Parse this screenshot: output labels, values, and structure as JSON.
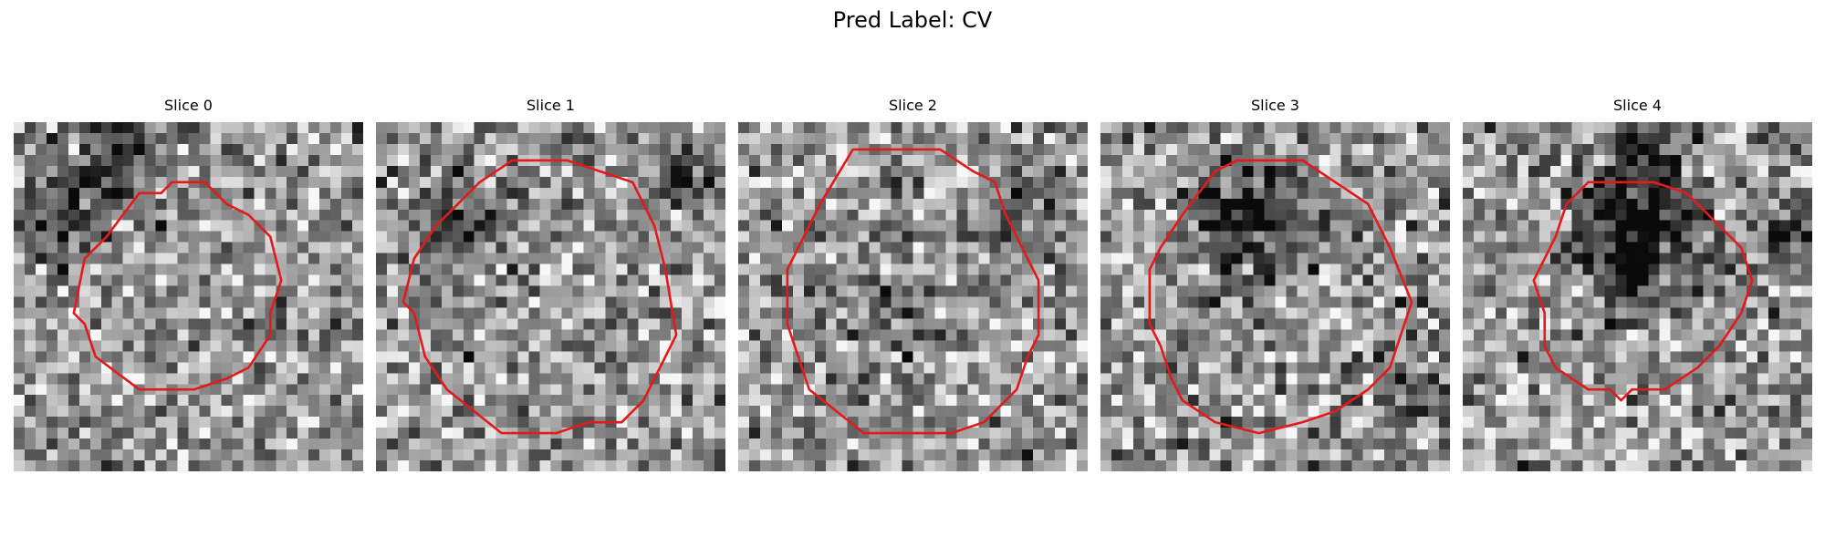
{
  "figure": {
    "title": "Pred Label: CV"
  },
  "grid_cells_per_side": 32,
  "contour_color": "#e31a1c",
  "slices": [
    {
      "title": "Slice 0",
      "seed": 11,
      "contour": [
        [
          14.5,
          5.5
        ],
        [
          17.5,
          5.5
        ],
        [
          19.5,
          7.5
        ],
        [
          21.5,
          8.5
        ],
        [
          23.5,
          10.5
        ],
        [
          24.5,
          14.5
        ],
        [
          23.5,
          17.5
        ],
        [
          23.5,
          19.5
        ],
        [
          21.5,
          22.5
        ],
        [
          19.5,
          23.5
        ],
        [
          16.5,
          24.5
        ],
        [
          11.5,
          24.5
        ],
        [
          7.5,
          21.5
        ],
        [
          6.5,
          18.5
        ],
        [
          5.5,
          17.5
        ],
        [
          6.5,
          12.5
        ],
        [
          8.5,
          10.5
        ],
        [
          11.5,
          6.5
        ],
        [
          13.5,
          6.5
        ]
      ],
      "dark_spots": [
        [
          [
            3.5,
            7.5
          ],
          3.0,
          0.35
        ],
        [
          [
            9.5,
            1.5
          ],
          3.5,
          0.3
        ]
      ]
    },
    {
      "title": "Slice 1",
      "seed": 23,
      "contour": [
        [
          12.5,
          3.5
        ],
        [
          17.5,
          3.5
        ],
        [
          20.5,
          4.5
        ],
        [
          23.5,
          5.5
        ],
        [
          24.5,
          7.5
        ],
        [
          25.5,
          9.5
        ],
        [
          26.5,
          13.5
        ],
        [
          27.5,
          19.5
        ],
        [
          26.5,
          21.5
        ],
        [
          25.5,
          23.5
        ],
        [
          24.5,
          25.5
        ],
        [
          22.5,
          27.5
        ],
        [
          19.5,
          27.5
        ],
        [
          16.5,
          28.5
        ],
        [
          11.5,
          28.5
        ],
        [
          6.5,
          24.5
        ],
        [
          4.5,
          21.5
        ],
        [
          3.5,
          17.5
        ],
        [
          2.5,
          16.5
        ],
        [
          3.5,
          12.5
        ],
        [
          5.5,
          9.5
        ],
        [
          7.5,
          7.5
        ],
        [
          9.5,
          5.5
        ]
      ],
      "dark_spots": [
        [
          [
            6.5,
            8.5
          ],
          2.5,
          0.3
        ],
        [
          [
            27.5,
            4.5
          ],
          1.5,
          0.4
        ]
      ]
    },
    {
      "title": "Slice 2",
      "seed": 37,
      "contour": [
        [
          10.5,
          2.5
        ],
        [
          18.5,
          2.5
        ],
        [
          21.5,
          4.5
        ],
        [
          23.5,
          5.5
        ],
        [
          24.5,
          8.5
        ],
        [
          25.5,
          10.5
        ],
        [
          27.5,
          14.5
        ],
        [
          27.5,
          19.5
        ],
        [
          26.5,
          21.5
        ],
        [
          25.5,
          24.5
        ],
        [
          22.5,
          27.5
        ],
        [
          19.5,
          28.5
        ],
        [
          11.5,
          28.5
        ],
        [
          6.5,
          24.5
        ],
        [
          5.5,
          21.5
        ],
        [
          4.5,
          18.5
        ],
        [
          4.5,
          13.5
        ],
        [
          6.5,
          9.5
        ],
        [
          7.5,
          7.5
        ]
      ],
      "dark_spots": [
        [
          [
            25.5,
            6.5
          ],
          2.5,
          0.35
        ],
        [
          [
            14.5,
            18.5
          ],
          2.5,
          0.2
        ]
      ]
    },
    {
      "title": "Slice 3",
      "seed": 41,
      "contour": [
        [
          12.5,
          3.5
        ],
        [
          18.5,
          3.5
        ],
        [
          21.5,
          5.5
        ],
        [
          24.5,
          7.5
        ],
        [
          26.5,
          11.5
        ],
        [
          28.5,
          16.5
        ],
        [
          27.5,
          19.5
        ],
        [
          26.5,
          22.5
        ],
        [
          24.5,
          24.5
        ],
        [
          21.5,
          26.5
        ],
        [
          18.5,
          27.5
        ],
        [
          14.5,
          28.5
        ],
        [
          10.5,
          27.5
        ],
        [
          7.5,
          25.5
        ],
        [
          6.5,
          23.5
        ],
        [
          5.5,
          20.5
        ],
        [
          4.5,
          18.5
        ],
        [
          4.5,
          13.5
        ],
        [
          5.5,
          11.5
        ],
        [
          7.5,
          8.5
        ],
        [
          10.5,
          4.5
        ]
      ],
      "dark_spots": [
        [
          [
            13.5,
            8.5
          ],
          3.5,
          0.55
        ],
        [
          [
            28.5,
            23.5
          ],
          2.5,
          0.25
        ]
      ]
    },
    {
      "title": "Slice 4",
      "seed": 59,
      "contour": [
        [
          11.5,
          5.5
        ],
        [
          17.5,
          5.5
        ],
        [
          20.5,
          6.5
        ],
        [
          23.5,
          9.5
        ],
        [
          25.5,
          11.5
        ],
        [
          26.5,
          14.5
        ],
        [
          25.5,
          17.5
        ],
        [
          23.5,
          20.5
        ],
        [
          21.5,
          22.5
        ],
        [
          18.5,
          24.5
        ],
        [
          15.5,
          24.5
        ],
        [
          14.5,
          25.5
        ],
        [
          13.5,
          24.5
        ],
        [
          11.5,
          24.5
        ],
        [
          8.5,
          22.5
        ],
        [
          7.5,
          20.5
        ],
        [
          7.5,
          17.5
        ],
        [
          6.5,
          14.5
        ],
        [
          8.5,
          10.5
        ],
        [
          9.5,
          7.5
        ]
      ],
      "dark_spots": [
        [
          [
            15.5,
            10.5
          ],
          4.0,
          0.6
        ],
        [
          [
            16.5,
            2.5
          ],
          2.5,
          0.35
        ],
        [
          [
            29.5,
            10.5
          ],
          2.0,
          0.3
        ]
      ]
    }
  ]
}
